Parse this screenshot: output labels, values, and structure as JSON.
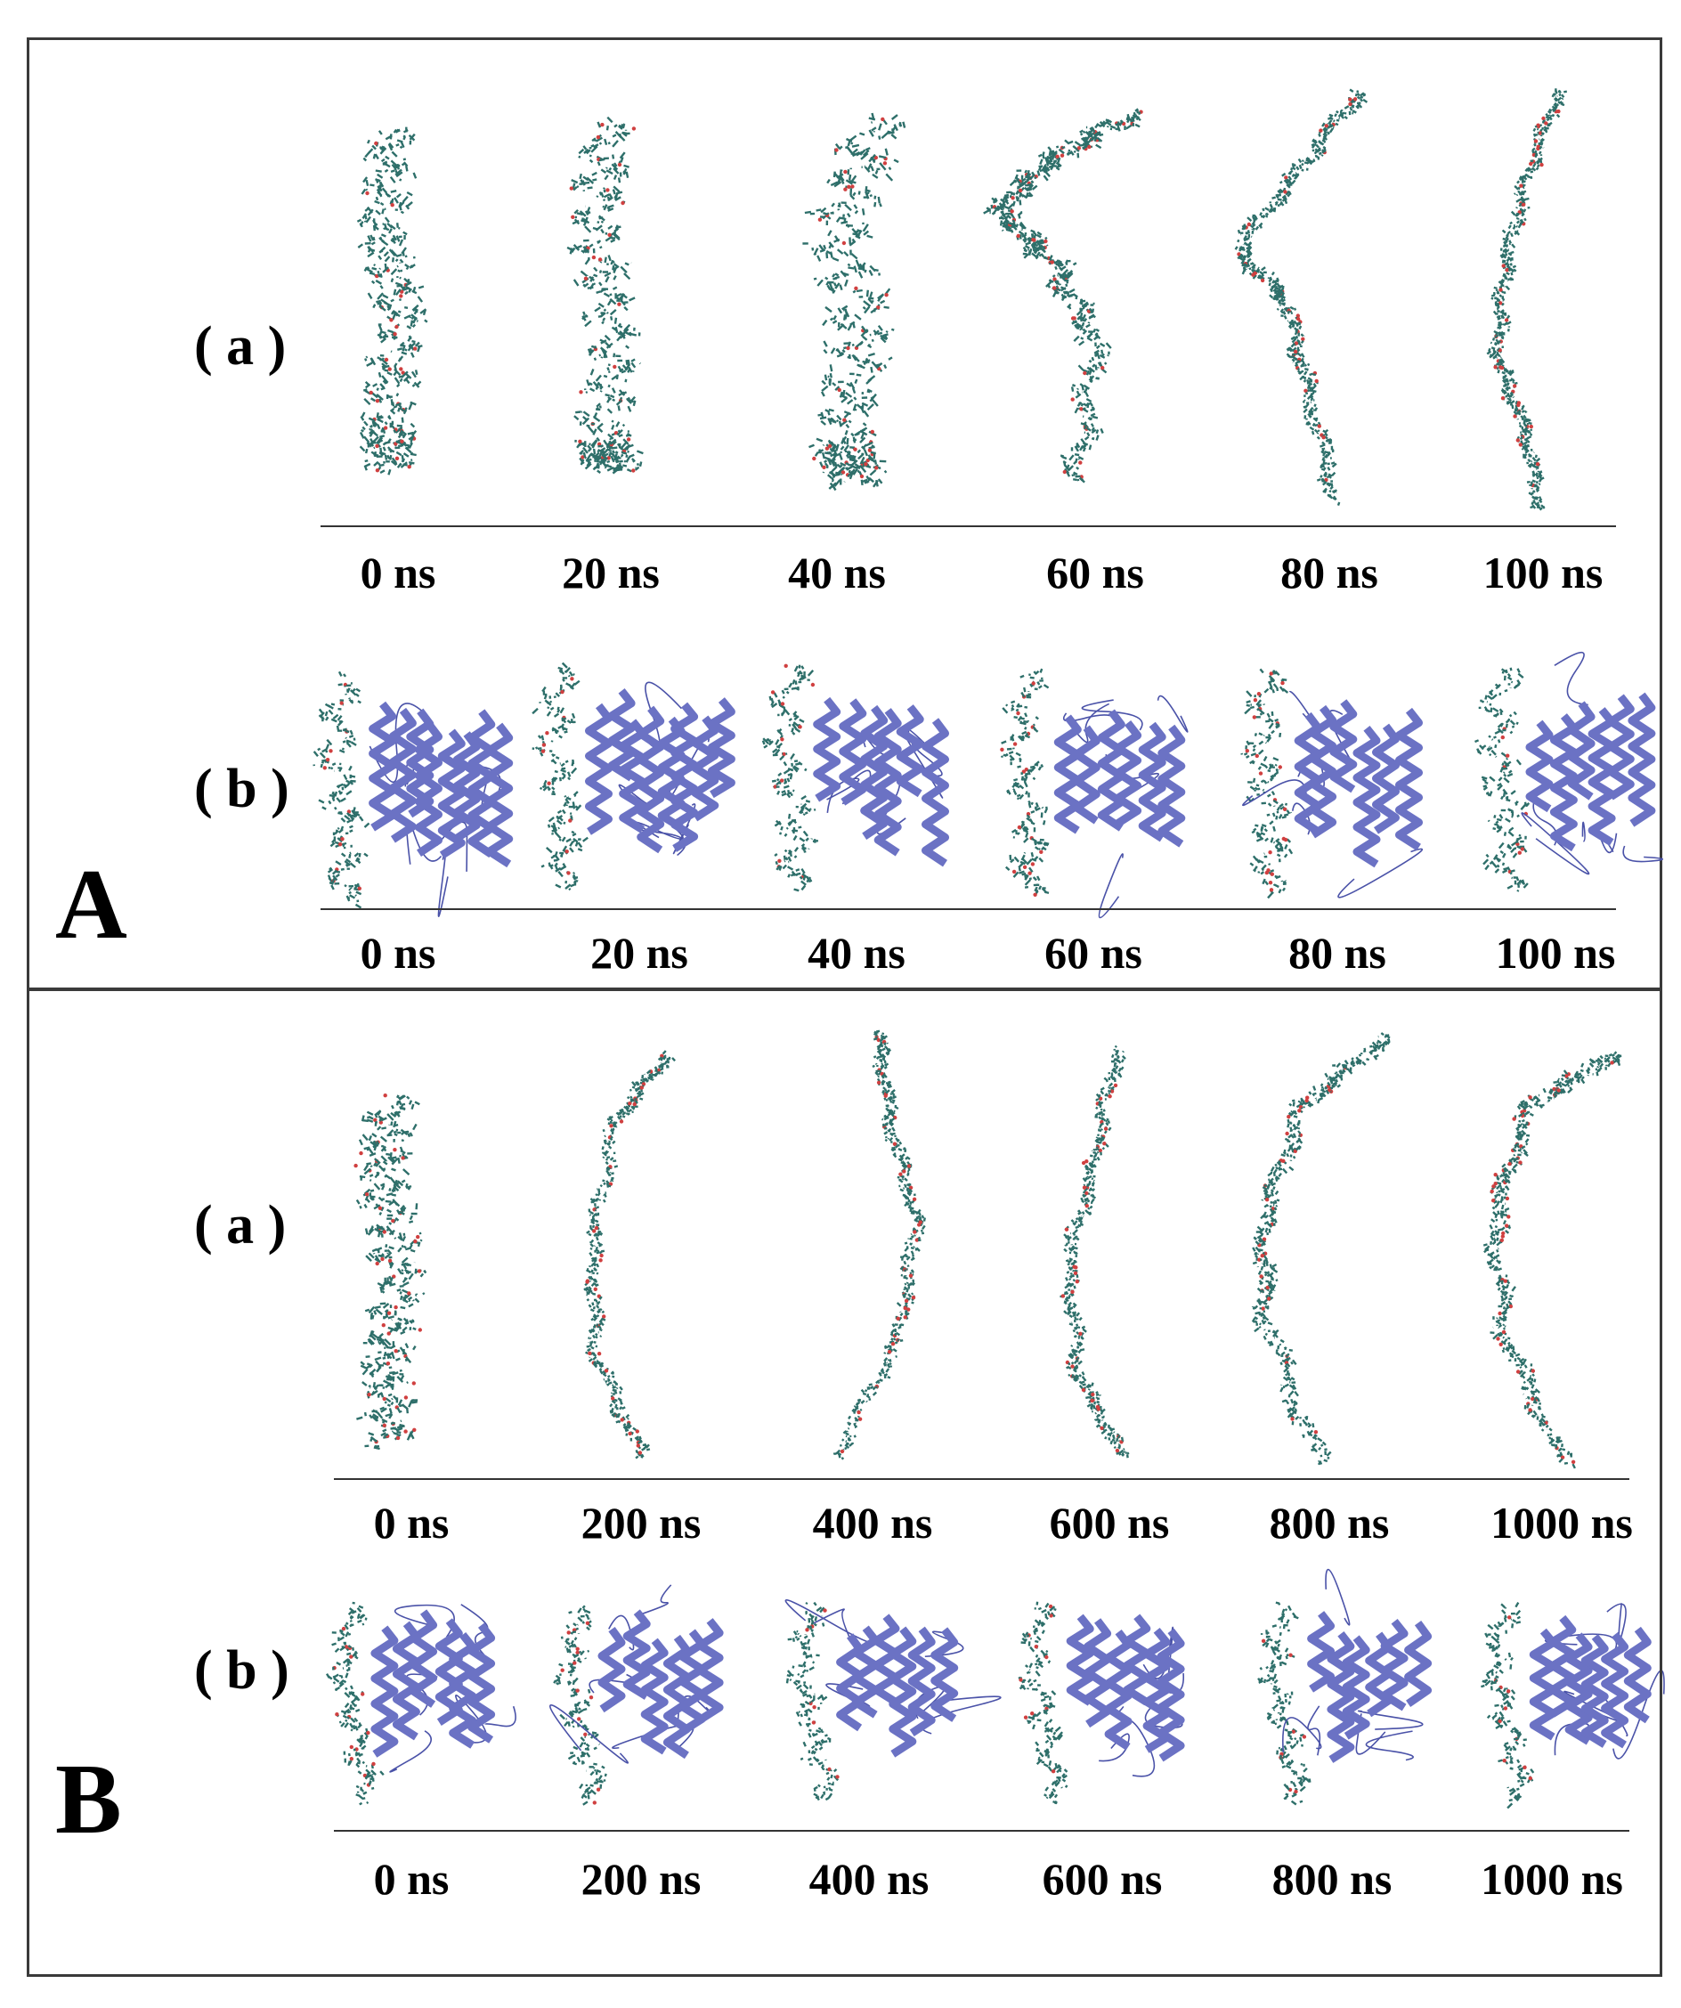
{
  "panels": [
    {
      "id": "A",
      "label": "A",
      "rows": [
        {
          "label": "( a )",
          "kind": "chain",
          "times": [
            "0 ns",
            "20 ns",
            "40 ns",
            "60 ns",
            "80 ns",
            "100 ns"
          ]
        },
        {
          "label": "( b )",
          "kind": "complex",
          "times": [
            "0 ns",
            "20 ns",
            "40 ns",
            "60 ns",
            "80 ns",
            "100 ns"
          ]
        }
      ]
    },
    {
      "id": "B",
      "label": "B",
      "rows": [
        {
          "label": "( a )",
          "kind": "chain",
          "times": [
            "0 ns",
            "200 ns",
            "400 ns",
            "600 ns",
            "800 ns",
            "1000 ns"
          ]
        },
        {
          "label": "( b )",
          "kind": "complex",
          "times": [
            "0 ns",
            "200 ns",
            "400 ns",
            "600 ns",
            "800 ns",
            "1000 ns"
          ]
        }
      ]
    }
  ],
  "colors": {
    "stick": "#2e6f6a",
    "oxygen": "#d04040",
    "protein": "#6b72c4",
    "protein_dark": "#4a52a8"
  }
}
